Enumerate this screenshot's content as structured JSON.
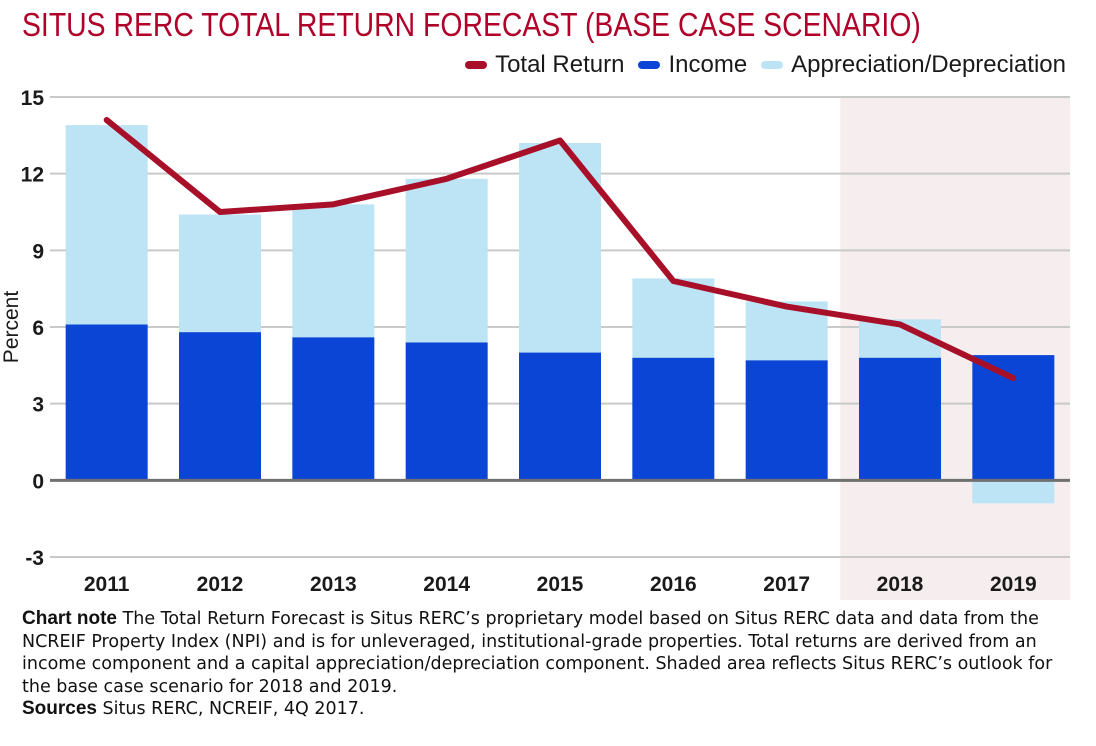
{
  "title": "SITUS RERC TOTAL RETURN FORECAST (BASE CASE SCENARIO)",
  "legend": {
    "total_return": "Total Return",
    "income": "Income",
    "appreciation": "Appreciation/Depreciation"
  },
  "colors": {
    "title": "#b0002a",
    "total_return": "#a8102a",
    "income": "#0b45d6",
    "appreciation": "#bde4f4",
    "shade": "#f6eeee",
    "gridline": "#c9c9c9",
    "zero_line": "#707070"
  },
  "chart_data": {
    "type": "bar",
    "stacked": true,
    "categories": [
      "2011",
      "2012",
      "2013",
      "2014",
      "2015",
      "2016",
      "2017",
      "2018",
      "2019"
    ],
    "series": [
      {
        "name": "Income",
        "type": "bar",
        "values": [
          6.1,
          5.8,
          5.6,
          5.4,
          5.0,
          4.8,
          4.7,
          4.8,
          4.9
        ]
      },
      {
        "name": "Appreciation/Depreciation",
        "type": "bar",
        "values": [
          7.8,
          4.6,
          5.2,
          6.4,
          8.2,
          3.1,
          2.3,
          1.5,
          -0.9
        ]
      },
      {
        "name": "Total Return",
        "type": "line",
        "values": [
          14.1,
          10.5,
          10.8,
          11.8,
          13.3,
          7.8,
          6.8,
          6.1,
          4.0
        ]
      }
    ],
    "ylabel": "Percent",
    "xlabel": "",
    "ylim": [
      -3,
      15
    ],
    "yticks": [
      "15",
      "12",
      "9",
      "6",
      "3",
      "0",
      "-3"
    ],
    "grid": true,
    "legend_position": "top-right",
    "shaded_categories": [
      "2018",
      "2019"
    ]
  },
  "notes": {
    "chart_note_label": "Chart note",
    "chart_note_text": " The Total Return Forecast is Situs RERC’s proprietary model based on Situs RERC data and data from the NCREIF Property Index (NPI) and is for unleveraged, institutional-grade properties. Total returns are derived from an income component and a capital appreciation/depreciation component. Shaded area reflects Situs RERC’s outlook for the base case scenario for 2018 and 2019.",
    "sources_label": "Sources",
    "sources_text": " Situs RERC, NCREIF, 4Q 2017."
  }
}
